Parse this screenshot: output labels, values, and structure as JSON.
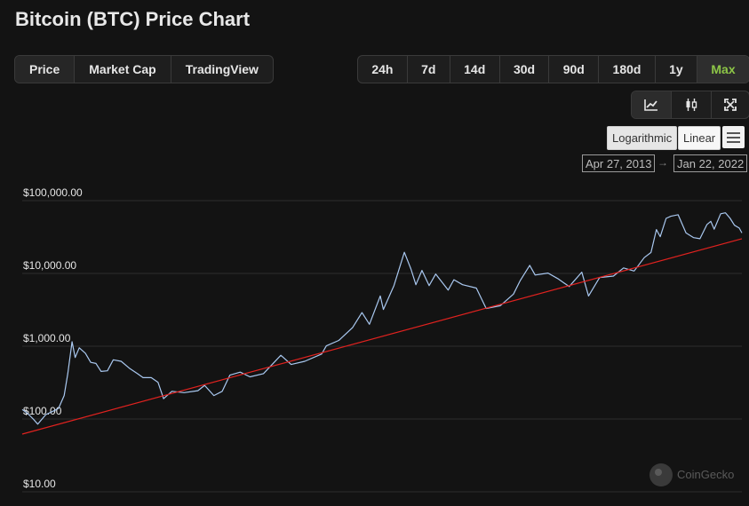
{
  "header": {
    "title": "Bitcoin (BTC) Price Chart"
  },
  "view_tabs": [
    {
      "label": "Price",
      "active": true
    },
    {
      "label": "Market Cap",
      "active": false
    },
    {
      "label": "TradingView",
      "active": false
    }
  ],
  "range_tabs": [
    {
      "label": "24h",
      "active": false
    },
    {
      "label": "7d",
      "active": false
    },
    {
      "label": "14d",
      "active": false
    },
    {
      "label": "30d",
      "active": false
    },
    {
      "label": "90d",
      "active": false
    },
    {
      "label": "180d",
      "active": false
    },
    {
      "label": "1y",
      "active": false
    },
    {
      "label": "Max",
      "active": true
    }
  ],
  "chart_tools": [
    {
      "icon": "line-chart-icon",
      "active": true
    },
    {
      "icon": "candlestick-icon",
      "active": false
    },
    {
      "icon": "fullscreen-icon",
      "active": false
    }
  ],
  "scale": {
    "log_label": "Logarithmic",
    "linear_label": "Linear",
    "selected": "Logarithmic"
  },
  "date_range": {
    "from": "Apr 27, 2013",
    "arrow": "→",
    "to": "Jan 22, 2022"
  },
  "watermark": {
    "text": "CoinGecko"
  },
  "colors": {
    "price_line": "#a9c8f0",
    "trend_line": "#e0221f",
    "active_range": "#8dc647",
    "background": "#131313",
    "grid": "#2e2e2e"
  },
  "chart_data": {
    "type": "line",
    "title": "",
    "xlabel": "",
    "ylabel": "",
    "y_scale": "log",
    "ylim": [
      10,
      100000
    ],
    "x_range": [
      "2013-04-27",
      "2022-01-22"
    ],
    "grid": true,
    "y_ticks": [
      {
        "value": 100000,
        "label": "$100,000.00"
      },
      {
        "value": 10000,
        "label": "$10,000.00"
      },
      {
        "value": 1000,
        "label": "$1,000.00"
      },
      {
        "value": 100,
        "label": "$100.00"
      },
      {
        "value": 10,
        "label": "$10.00"
      }
    ],
    "series": [
      {
        "kind": "price",
        "x": [
          "2013-04-27",
          "2013-05-20",
          "2013-06-15",
          "2013-07-05",
          "2013-08-10",
          "2013-09-15",
          "2013-10-05",
          "2013-10-30",
          "2013-11-15",
          "2013-12-04",
          "2013-12-18",
          "2014-01-05",
          "2014-02-01",
          "2014-02-25",
          "2014-03-20",
          "2014-04-12",
          "2014-05-10",
          "2014-06-05",
          "2014-07-10",
          "2014-08-15",
          "2014-09-20",
          "2014-10-15",
          "2014-11-20",
          "2014-12-20",
          "2015-01-14",
          "2015-02-20",
          "2015-04-15",
          "2015-06-15",
          "2015-07-15",
          "2015-08-25",
          "2015-10-01",
          "2015-11-04",
          "2015-12-20",
          "2016-02-01",
          "2016-04-01",
          "2016-06-17",
          "2016-08-02",
          "2016-10-01",
          "2016-12-15",
          "2017-01-05",
          "2017-03-01",
          "2017-05-01",
          "2017-06-12",
          "2017-07-15",
          "2017-09-01",
          "2017-09-15",
          "2017-11-01",
          "2017-12-17",
          "2018-01-15",
          "2018-02-06",
          "2018-03-05",
          "2018-04-06",
          "2018-05-05",
          "2018-06-29",
          "2018-07-25",
          "2018-09-01",
          "2018-11-01",
          "2018-12-15",
          "2019-02-15",
          "2019-04-15",
          "2019-05-15",
          "2019-06-26",
          "2019-07-20",
          "2019-09-15",
          "2019-10-28",
          "2019-12-18",
          "2020-02-12",
          "2020-03-13",
          "2020-05-01",
          "2020-07-01",
          "2020-08-15",
          "2020-10-01",
          "2020-11-15",
          "2020-12-15",
          "2021-01-08",
          "2021-01-25",
          "2021-02-20",
          "2021-03-13",
          "2021-04-14",
          "2021-05-19",
          "2021-06-22",
          "2021-07-20",
          "2021-08-20",
          "2021-09-06",
          "2021-09-21",
          "2021-10-20",
          "2021-11-10",
          "2021-12-01",
          "2021-12-20",
          "2022-01-10",
          "2022-01-22"
        ],
        "y": [
          135,
          120,
          100,
          85,
          115,
          130,
          140,
          210,
          420,
          1150,
          700,
          950,
          800,
          600,
          580,
          450,
          460,
          650,
          620,
          500,
          420,
          370,
          370,
          320,
          190,
          240,
          230,
          245,
          290,
          210,
          240,
          400,
          440,
          380,
          420,
          750,
          560,
          620,
          780,
          1010,
          1200,
          1800,
          2900,
          2000,
          4900,
          3200,
          6800,
          19500,
          11500,
          7000,
          11000,
          6800,
          9800,
          5900,
          8200,
          7000,
          6300,
          3300,
          3600,
          5200,
          8000,
          12900,
          9500,
          10100,
          8500,
          6600,
          10400,
          4900,
          8800,
          9200,
          11900,
          10800,
          16500,
          19400,
          40000,
          32000,
          57000,
          61000,
          64000,
          36000,
          31000,
          30000,
          47000,
          52000,
          40500,
          66000,
          68000,
          57000,
          46000,
          42000,
          36000
        ]
      },
      {
        "kind": "trend",
        "x": [
          "2013-04-27",
          "2022-01-22"
        ],
        "y": [
          62,
          30000
        ]
      }
    ]
  }
}
